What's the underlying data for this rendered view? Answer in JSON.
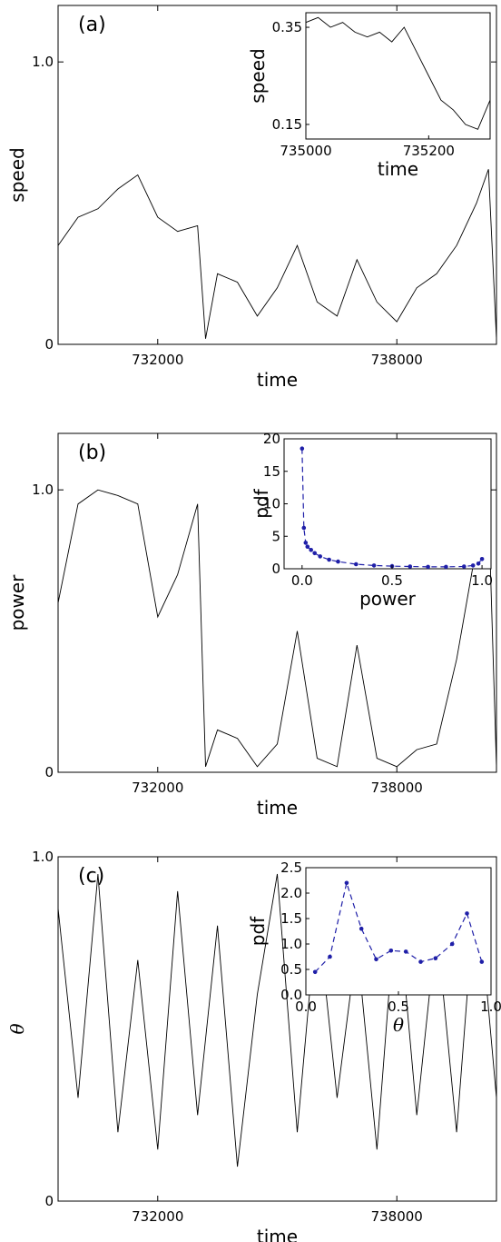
{
  "chart_data": [
    {
      "type": "line",
      "panel_label": "(a)",
      "xlabel": "time",
      "ylabel": "speed",
      "xlim": [
        729500,
        740500
      ],
      "ylim": [
        0,
        1.2
      ],
      "x_ticks": [
        732000,
        738000
      ],
      "y_ticks": [
        0,
        1.0
      ],
      "y_tick_labels": [
        "0",
        "1.0"
      ],
      "series": [
        {
          "x": [
            729500,
            730000,
            730500,
            731000,
            731500,
            732000,
            732500,
            733000,
            733200,
            733500,
            734000,
            734500,
            735000,
            735500,
            736000,
            736500,
            737000,
            737500,
            738000,
            738500,
            739000,
            739500,
            740000,
            740300,
            740500
          ],
          "y": [
            0.35,
            0.45,
            0.48,
            0.55,
            0.6,
            0.45,
            0.4,
            0.42,
            0.02,
            0.25,
            0.22,
            0.1,
            0.2,
            0.35,
            0.15,
            0.1,
            0.3,
            0.15,
            0.08,
            0.2,
            0.25,
            0.35,
            0.5,
            0.62,
            0.02
          ]
        }
      ],
      "inset": {
        "type": "line",
        "xlabel": "time",
        "ylabel": "speed",
        "xlim": [
          735000,
          735300
        ],
        "ylim": [
          0.12,
          0.38
        ],
        "x_ticks": [
          735000,
          735200
        ],
        "y_ticks": [
          0.15,
          0.35
        ],
        "y_tick_labels": [
          "0.15",
          "0.35"
        ],
        "series": [
          {
            "x": [
              735000,
              735020,
              735040,
              735060,
              735080,
              735100,
              735120,
              735140,
              735160,
              735180,
              735200,
              735220,
              735240,
              735260,
              735280,
              735300
            ],
            "y": [
              0.36,
              0.37,
              0.35,
              0.36,
              0.34,
              0.33,
              0.34,
              0.32,
              0.35,
              0.3,
              0.25,
              0.2,
              0.18,
              0.15,
              0.14,
              0.2
            ]
          }
        ]
      }
    },
    {
      "type": "line",
      "panel_label": "(b)",
      "xlabel": "time",
      "ylabel": "power",
      "xlim": [
        729500,
        740500
      ],
      "ylim": [
        0,
        1.2
      ],
      "x_ticks": [
        732000,
        738000
      ],
      "y_ticks": [
        0,
        1.0
      ],
      "y_tick_labels": [
        "0",
        "1.0"
      ],
      "series": [
        {
          "x": [
            729500,
            730000,
            730500,
            731000,
            731500,
            732000,
            732500,
            733000,
            733200,
            733500,
            734000,
            734500,
            735000,
            735500,
            736000,
            736500,
            737000,
            737500,
            738000,
            738500,
            739000,
            739500,
            740000,
            740300,
            740500
          ],
          "y": [
            0.6,
            0.95,
            1.0,
            0.98,
            0.95,
            0.55,
            0.7,
            0.95,
            0.02,
            0.15,
            0.12,
            0.02,
            0.1,
            0.5,
            0.05,
            0.02,
            0.45,
            0.05,
            0.02,
            0.08,
            0.1,
            0.4,
            0.8,
            0.95,
            0.02
          ]
        }
      ],
      "inset": {
        "type": "line",
        "xlabel": "power",
        "ylabel": "pdf",
        "xlim": [
          -0.1,
          1.05
        ],
        "ylim": [
          0,
          20
        ],
        "x_ticks": [
          0.0,
          0.5,
          1.0
        ],
        "x_tick_labels": [
          "0.0",
          "0.5",
          "1.0"
        ],
        "y_ticks": [
          0,
          5,
          10,
          15,
          20
        ],
        "y_tick_labels": [
          "0",
          "5",
          "10",
          "15",
          "20"
        ],
        "series": [
          {
            "x": [
              0.0,
              0.01,
              0.02,
              0.03,
              0.05,
              0.07,
              0.1,
              0.15,
              0.2,
              0.3,
              0.4,
              0.5,
              0.6,
              0.7,
              0.8,
              0.9,
              0.95,
              0.98,
              1.0
            ],
            "y": [
              18.5,
              6.3,
              4.0,
              3.4,
              2.9,
              2.4,
              1.9,
              1.4,
              1.1,
              0.7,
              0.5,
              0.4,
              0.35,
              0.3,
              0.3,
              0.35,
              0.5,
              0.8,
              1.5
            ]
          }
        ]
      }
    },
    {
      "type": "line",
      "panel_label": "(c)",
      "xlabel": "time",
      "ylabel": "θ",
      "xlim": [
        729500,
        740500
      ],
      "ylim": [
        0,
        1.0
      ],
      "x_ticks": [
        732000,
        738000
      ],
      "y_ticks": [
        0,
        1.0
      ],
      "y_tick_labels": [
        "0",
        "1.0"
      ],
      "series": [
        {
          "x": [
            729500,
            730000,
            730500,
            731000,
            731500,
            732000,
            732500,
            733000,
            733500,
            734000,
            734500,
            735000,
            735500,
            736000,
            736500,
            737000,
            737500,
            738000,
            738500,
            739000,
            739500,
            740000,
            740500
          ],
          "y": [
            0.85,
            0.3,
            0.95,
            0.2,
            0.7,
            0.15,
            0.9,
            0.25,
            0.8,
            0.1,
            0.6,
            0.95,
            0.2,
            0.85,
            0.3,
            0.75,
            0.15,
            0.9,
            0.25,
            0.8,
            0.2,
            0.95,
            0.3
          ]
        }
      ],
      "inset": {
        "type": "line",
        "xlabel": "θ",
        "ylabel": "pdf",
        "xlim": [
          0.0,
          1.0
        ],
        "ylim": [
          0.0,
          2.5
        ],
        "x_ticks": [
          0.0,
          0.5,
          1.0
        ],
        "x_tick_labels": [
          "0.0",
          "0.5",
          "1.0"
        ],
        "y_ticks": [
          0.0,
          0.5,
          1.0,
          1.5,
          2.0,
          2.5
        ],
        "y_tick_labels": [
          "0.0",
          "0.5",
          "1.0",
          "1.5",
          "2.0",
          "2.5"
        ],
        "series": [
          {
            "x": [
              0.05,
              0.13,
              0.22,
              0.3,
              0.38,
              0.46,
              0.54,
              0.62,
              0.7,
              0.79,
              0.87,
              0.95
            ],
            "y": [
              0.45,
              0.75,
              2.2,
              1.3,
              0.7,
              0.87,
              0.85,
              0.65,
              0.72,
              1.0,
              1.6,
              0.65
            ]
          }
        ]
      }
    }
  ]
}
